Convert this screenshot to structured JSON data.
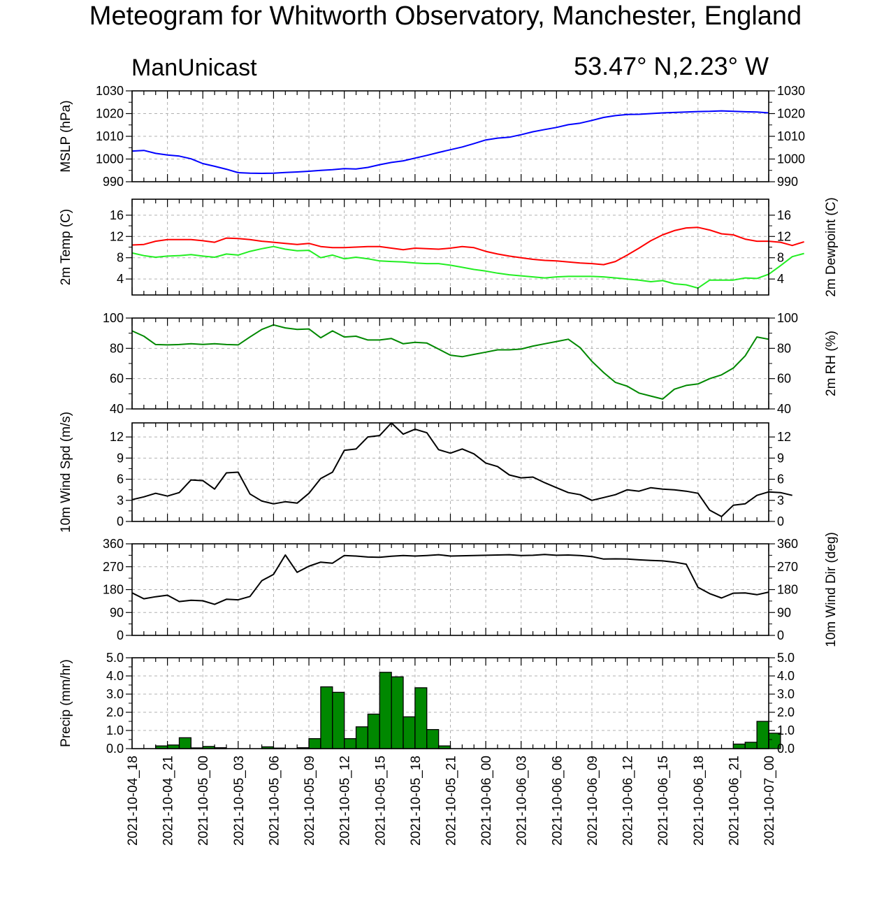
{
  "title": "Meteogram for Whitworth Observatory, Manchester, England",
  "subtitle_left": "ManUnicast",
  "subtitle_right": "53.47° N,2.23° W",
  "chart_data": {
    "type": "meteogram",
    "x_labels": [
      "2021-10-04_18",
      "2021-10-04_21",
      "2021-10-05_00",
      "2021-10-05_03",
      "2021-10-05_06",
      "2021-10-05_09",
      "2021-10-05_12",
      "2021-10-05_15",
      "2021-10-05_18",
      "2021-10-05_21",
      "2021-10-06_00",
      "2021-10-06_03",
      "2021-10-06_06",
      "2021-10-06_09",
      "2021-10-06_12",
      "2021-10-06_15",
      "2021-10-06_18",
      "2021-10-06_21",
      "2021-10-07_00"
    ],
    "x_step_hours": 1,
    "x_range_hours": [
      0,
      54
    ],
    "grid": true,
    "panels": [
      {
        "id": "mslp",
        "left_label": "MSLP (hPa)",
        "right_label": "",
        "ylim": [
          990,
          1030
        ],
        "ticks": [
          990,
          1000,
          1010,
          1020,
          1030
        ],
        "tick_labels": [
          "990",
          "1000",
          "1010",
          "1020",
          "1030"
        ],
        "series": [
          {
            "color": "#0000ff",
            "type": "line",
            "values": [
              1003.5,
              1003.8,
              1002.5,
              1001.8,
              1001.3,
              1000.1,
              998.0,
              996.8,
              995.5,
              994.0,
              993.8,
              993.7,
              993.8,
              994.1,
              994.3,
              994.6,
              995.0,
              995.3,
              995.8,
              995.6,
              996.3,
              997.5,
              998.5,
              999.2,
              1000.4,
              1001.6,
              1002.9,
              1004.1,
              1005.3,
              1006.8,
              1008.4,
              1009.2,
              1009.6,
              1010.7,
              1012.0,
              1013.0,
              1013.9,
              1015.1,
              1015.8,
              1017.0,
              1018.3,
              1019.1,
              1019.6,
              1019.7,
              1020.0,
              1020.3,
              1020.5,
              1020.7,
              1020.9,
              1021.0,
              1021.2,
              1021.0,
              1020.8,
              1020.7,
              1020.3
            ]
          }
        ]
      },
      {
        "id": "temp",
        "left_label": "2m Temp (C)",
        "right_label": "2m Dewpoint (C)",
        "ylim": [
          1,
          19
        ],
        "ticks": [
          4,
          8,
          12,
          16
        ],
        "tick_labels": [
          "4",
          "8",
          "12",
          "16"
        ],
        "series": [
          {
            "color": "#ff0000",
            "type": "line",
            "values": [
              10.4,
              10.5,
              11.1,
              11.4,
              11.4,
              11.4,
              11.2,
              10.9,
              11.7,
              11.6,
              11.4,
              11.1,
              10.9,
              10.7,
              10.5,
              10.7,
              10.1,
              9.9,
              9.9,
              10.0,
              10.1,
              10.1,
              9.8,
              9.5,
              9.8,
              9.7,
              9.6,
              9.8,
              10.1,
              9.9,
              9.2,
              8.7,
              8.3,
              8.0,
              7.7,
              7.5,
              7.4,
              7.2,
              7.0,
              6.9,
              6.7,
              7.3,
              8.5,
              9.8,
              11.2,
              12.3,
              13.1,
              13.6,
              13.7,
              13.2,
              12.5,
              12.3,
              11.5,
              11.1,
              11.1,
              10.9,
              10.3,
              11.0
            ]
          },
          {
            "color": "#22ee22",
            "type": "line",
            "values": [
              8.9,
              8.4,
              8.1,
              8.3,
              8.4,
              8.6,
              8.3,
              8.1,
              8.7,
              8.5,
              9.2,
              9.7,
              10.1,
              9.6,
              9.3,
              9.4,
              8.0,
              8.5,
              7.8,
              8.1,
              7.8,
              7.4,
              7.3,
              7.2,
              7.0,
              6.9,
              6.9,
              6.6,
              6.2,
              5.8,
              5.5,
              5.1,
              4.8,
              4.6,
              4.4,
              4.2,
              4.4,
              4.5,
              4.5,
              4.5,
              4.4,
              4.2,
              4.0,
              3.8,
              3.5,
              3.7,
              3.1,
              2.9,
              2.3,
              3.8,
              3.8,
              3.8,
              4.2,
              4.1,
              4.9,
              6.5,
              8.2,
              8.8
            ]
          }
        ]
      },
      {
        "id": "rh",
        "left_label": "",
        "right_label": "2m RH (%)",
        "ylim": [
          40,
          100
        ],
        "ticks": [
          40,
          60,
          80,
          100
        ],
        "tick_labels": [
          "40",
          "60",
          "80",
          "100"
        ],
        "series": [
          {
            "color": "#008800",
            "type": "line",
            "values": [
              91.5,
              88.0,
              82.5,
              82.3,
              82.5,
              83.0,
              82.6,
              83.0,
              82.5,
              82.3,
              87.5,
              92.5,
              95.5,
              93.5,
              92.5,
              92.8,
              87.0,
              91.5,
              87.5,
              88.0,
              85.5,
              85.5,
              86.5,
              83.0,
              84.0,
              83.5,
              79.5,
              75.5,
              74.5,
              76.0,
              77.5,
              79.0,
              79.0,
              79.5,
              81.5,
              83.0,
              84.5,
              86.0,
              80.5,
              71.5,
              64.0,
              57.5,
              55.0,
              50.5,
              48.5,
              46.5,
              53.0,
              55.5,
              56.5,
              60.0,
              62.5,
              67.0,
              75.0,
              87.5,
              86.0
            ]
          }
        ]
      },
      {
        "id": "wspd",
        "left_label": "10m Wind Spd (m/s)",
        "right_label": "",
        "ylim": [
          0,
          14
        ],
        "ticks": [
          0,
          3,
          6,
          9,
          12
        ],
        "tick_labels": [
          "0",
          "3",
          "6",
          "9",
          "12"
        ],
        "series": [
          {
            "color": "#000000",
            "type": "line",
            "values": [
              3.1,
              3.5,
              4.0,
              3.6,
              4.1,
              5.9,
              5.8,
              4.6,
              6.9,
              7.0,
              3.9,
              2.9,
              2.5,
              2.8,
              2.6,
              4.0,
              6.1,
              7.0,
              10.1,
              10.3,
              12.0,
              12.2,
              14.0,
              12.4,
              13.1,
              12.6,
              10.2,
              9.7,
              10.3,
              9.6,
              8.3,
              7.8,
              6.6,
              6.2,
              6.3,
              5.5,
              4.8,
              4.1,
              3.8,
              3.0,
              3.4,
              3.8,
              4.5,
              4.3,
              4.8,
              4.6,
              4.5,
              4.3,
              4.0,
              1.6,
              0.7,
              2.3,
              2.5,
              3.7,
              4.2,
              4.1,
              3.7
            ]
          }
        ]
      },
      {
        "id": "wdir",
        "left_label": "",
        "right_label": "10m Wind Dir (deg)",
        "ylim": [
          0,
          360
        ],
        "ticks": [
          0,
          90,
          180,
          270,
          360
        ],
        "tick_labels": [
          "0",
          "90",
          "180",
          "270",
          "360"
        ],
        "series": [
          {
            "color": "#000000",
            "type": "line",
            "values": [
              167,
              144,
              152,
              158,
              133,
              138,
              136,
              122,
              142,
              140,
              153,
              215,
              240,
              316,
              248,
              272,
              288,
              284,
              314,
              312,
              308,
              307,
              311,
              314,
              312,
              314,
              317,
              312,
              313,
              314,
              315,
              316,
              317,
              314,
              315,
              318,
              315,
              316,
              314,
              310,
              300,
              301,
              300,
              297,
              295,
              293,
              288,
              280,
              189,
              164,
              147,
              166,
              167,
              160,
              170
            ]
          }
        ]
      },
      {
        "id": "precip",
        "left_label": "Precip (mm/hr)",
        "right_label": "",
        "ylim": [
          0,
          5
        ],
        "ticks": [
          0,
          1,
          2,
          3,
          4,
          5
        ],
        "tick_labels": [
          "0.0",
          "1.0",
          "2.0",
          "3.0",
          "4.0",
          "5.0"
        ],
        "series": [
          {
            "color": "#008800",
            "type": "bar",
            "values": [
              0,
              0,
              0.15,
              0.2,
              0.6,
              0.04,
              0.12,
              0.05,
              0,
              0,
              0,
              0.1,
              0.03,
              0,
              0.05,
              0.55,
              3.4,
              3.1,
              0.55,
              1.2,
              1.9,
              4.2,
              3.95,
              1.75,
              3.35,
              1.05,
              0.15,
              0,
              0,
              0,
              0,
              0,
              0,
              0,
              0,
              0,
              0,
              0,
              0,
              0,
              0,
              0,
              0,
              0,
              0,
              0,
              0,
              0,
              0,
              0,
              0,
              0.25,
              0.35,
              1.5,
              0.85
            ]
          }
        ]
      }
    ]
  }
}
